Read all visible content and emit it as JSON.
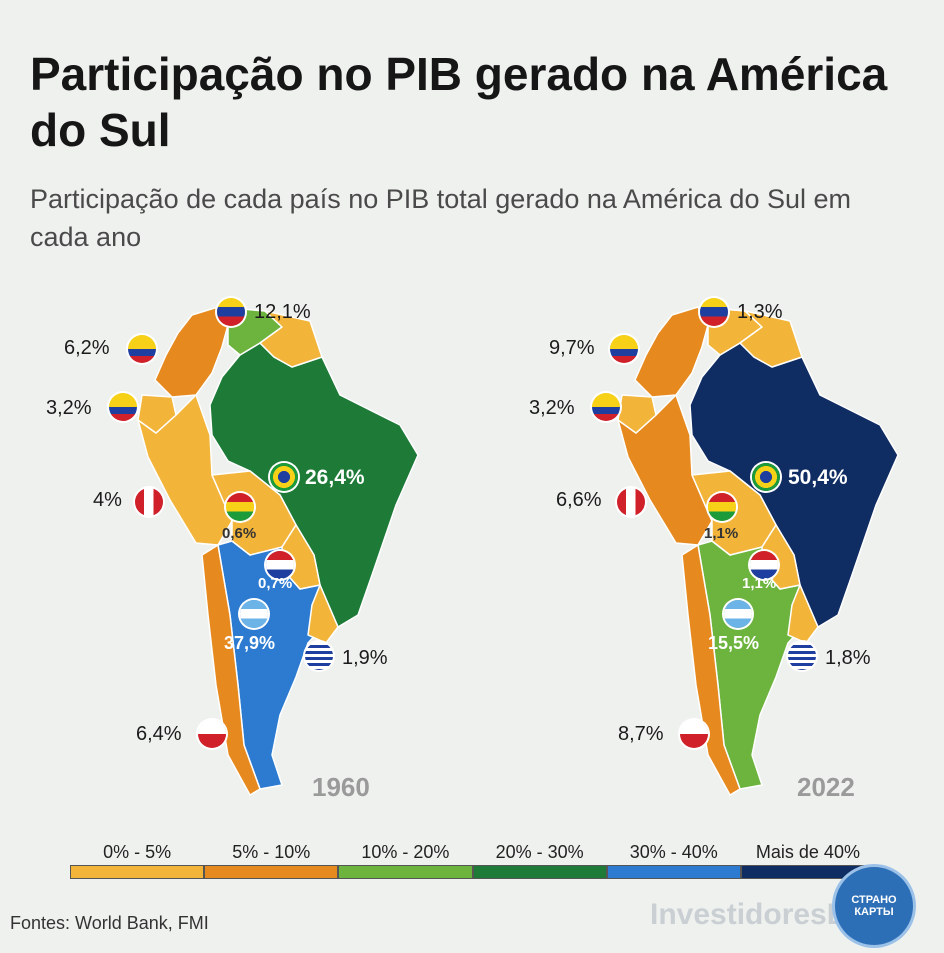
{
  "title": "Participação no PIB gerado na América do Sul",
  "subtitle": "Participação de cada país no PIB total gerado na América do Sul em cada ano",
  "maps": [
    {
      "year": "1960",
      "values": {
        "venezuela": "12,1%",
        "colombia": "6,2%",
        "ecuador": "3,2%",
        "peru": "4%",
        "brazil": "26,4%",
        "bolivia": "0,6%",
        "paraguay": "0,7%",
        "argentina": "37,9%",
        "uruguay": "1,9%",
        "chile": "6,4%"
      },
      "fills": {
        "venezuela": "#6db43f",
        "colombia": "#e68a1f",
        "ecuador": "#f3b43a",
        "peru": "#f3b43a",
        "brazil": "#1d7a37",
        "bolivia": "#f3b43a",
        "paraguay": "#f3b43a",
        "argentina": "#2c7bd1",
        "uruguay": "#f3b43a",
        "chile": "#e68a1f",
        "guianas": "#f3b43a"
      }
    },
    {
      "year": "2022",
      "values": {
        "venezuela": "1,3%",
        "colombia": "9,7%",
        "ecuador": "3,2%",
        "peru": "6,6%",
        "brazil": "50,4%",
        "bolivia": "1,1%",
        "paraguay": "1,1%",
        "argentina": "15,5%",
        "uruguay": "1,8%",
        "chile": "8,7%"
      },
      "fills": {
        "venezuela": "#f3b43a",
        "colombia": "#e68a1f",
        "ecuador": "#f3b43a",
        "peru": "#e68a1f",
        "brazil": "#0f2c63",
        "bolivia": "#f3b43a",
        "paraguay": "#f3b43a",
        "argentina": "#6db43f",
        "uruguay": "#f3b43a",
        "chile": "#e68a1f",
        "guianas": "#f3b43a"
      }
    }
  ],
  "legend": [
    {
      "label": "0% - 5%",
      "color": "#f3b43a"
    },
    {
      "label": "5% - 10%",
      "color": "#e68a1f"
    },
    {
      "label": "10% - 20%",
      "color": "#6db43f"
    },
    {
      "label": "20% - 30%",
      "color": "#1d7a37"
    },
    {
      "label": "30% - 40%",
      "color": "#2c7bd1"
    },
    {
      "label": "Mais de 40%",
      "color": "#0f2c63"
    }
  ],
  "source": "Fontes: World Bank, FMI",
  "watermark": "InvestidoresBrasil",
  "badge": "СТРАНО КАРТЫ"
}
